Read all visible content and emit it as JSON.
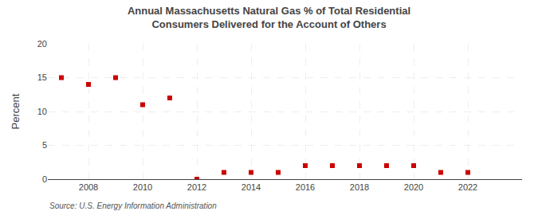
{
  "chart_data": {
    "type": "scatter",
    "title": "Annual Massachusetts Natural Gas % of Total Residential Consumers Delivered for the Account of Others",
    "ylabel": "Percent",
    "source": "Source: U.S. Energy Information Administration",
    "x": [
      2007,
      2008,
      2009,
      2010,
      2011,
      2012,
      2013,
      2014,
      2015,
      2016,
      2017,
      2018,
      2019,
      2020,
      2021,
      2022,
      2023
    ],
    "values": [
      15.0,
      14.0,
      15.0,
      11.0,
      12.0,
      0.0,
      1.0,
      1.0,
      1.0,
      2.0,
      2.0,
      2.0,
      2.0,
      2.0,
      1.0,
      1.0,
      null
    ],
    "color": "#cc0000",
    "marker": "square",
    "xlim": [
      2006.5,
      2024.0
    ],
    "xticks": [
      2008,
      2010,
      2012,
      2014,
      2016,
      2018,
      2020,
      2022
    ],
    "ylim": [
      0,
      20
    ],
    "yticks": [
      0,
      5,
      10,
      15,
      20
    ],
    "grid": true
  }
}
